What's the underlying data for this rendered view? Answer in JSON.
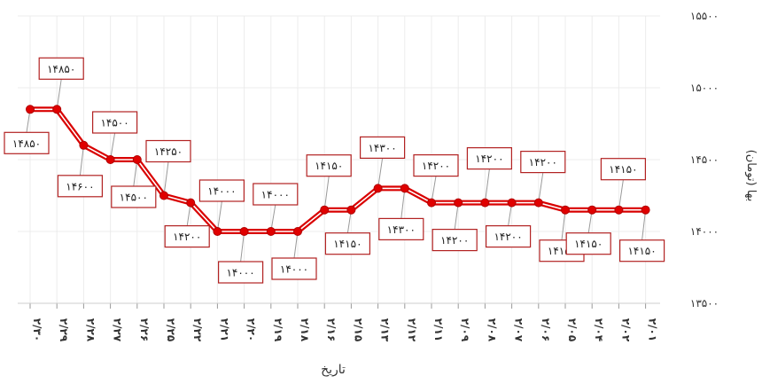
{
  "chart_data": {
    "type": "line",
    "xlabel": "تاریخ",
    "ylabel": "بها (تومان)",
    "ylim": [
      13500,
      15500
    ],
    "yticks": [
      "۱۵۵۰۰",
      "۱۵۰۰۰",
      "۱۴۵۰۰",
      "۱۴۰۰۰",
      "۱۳۵۰۰"
    ],
    "grid": true,
    "categories": [
      "۲/۳۰",
      "۲/۲۹",
      "۲/۲۸",
      "۲/۲۷",
      "۲/۲۶",
      "۲/۲۵",
      "۲/۲۲",
      "۲/۲۱",
      "۲/۲۰",
      "۲/۱۹",
      "۲/۱۸",
      "۲/۱۶",
      "۲/۱۵",
      "۲/۱۳",
      "۲/۱۲",
      "۲/۱۱",
      "۲/۰۹",
      "۲/۰۸",
      "۲/۰۷",
      "۲/۰۶",
      "۲/۰۵",
      "۲/۰۴",
      "۲/۰۲",
      "۲/۰۱"
    ],
    "values": [
      14850,
      14850,
      14600,
      14500,
      14500,
      14250,
      14200,
      14000,
      14000,
      14000,
      14000,
      14150,
      14150,
      14300,
      14300,
      14200,
      14200,
      14200,
      14200,
      14200,
      14150,
      14150,
      14150,
      14150
    ],
    "data_labels": [
      "۱۴۸۵۰",
      "۱۴۸۵۰",
      "۱۴۶۰۰",
      "۱۴۵۰۰",
      "۱۴۵۰۰",
      "۱۴۲۵۰",
      "۱۴۲۰۰",
      "۱۴۰۰۰",
      "۱۴۰۰۰",
      "۱۴۰۰۰",
      "۱۴۰۰۰",
      "۱۴۱۵۰",
      "۱۴۱۵۰",
      "۱۴۳۰۰",
      "۱۴۳۰۰",
      "۱۴۲۰۰",
      "۱۴۲۰۰",
      "۱۴۲۰۰",
      "۱۴۲۰۰",
      "۱۴۲۰۰",
      "۱۴۱۵۰",
      "۱۴۱۵۰",
      "۱۴۱۵۰",
      "۱۴۱۵۰"
    ],
    "label_placement": [
      "below",
      "above",
      "below",
      "above",
      "below",
      "above",
      "below",
      "above",
      "below",
      "above",
      "below",
      "above",
      "below",
      "above",
      "below",
      "above",
      "below",
      "above",
      "below",
      "above",
      "below",
      "below",
      "above",
      "below"
    ],
    "colors": {
      "line": "#d90000",
      "line_inner": "#ffffff",
      "marker": "#e00000",
      "label_border": "#b22222",
      "grid": "#ececec",
      "text": "#333333"
    }
  }
}
